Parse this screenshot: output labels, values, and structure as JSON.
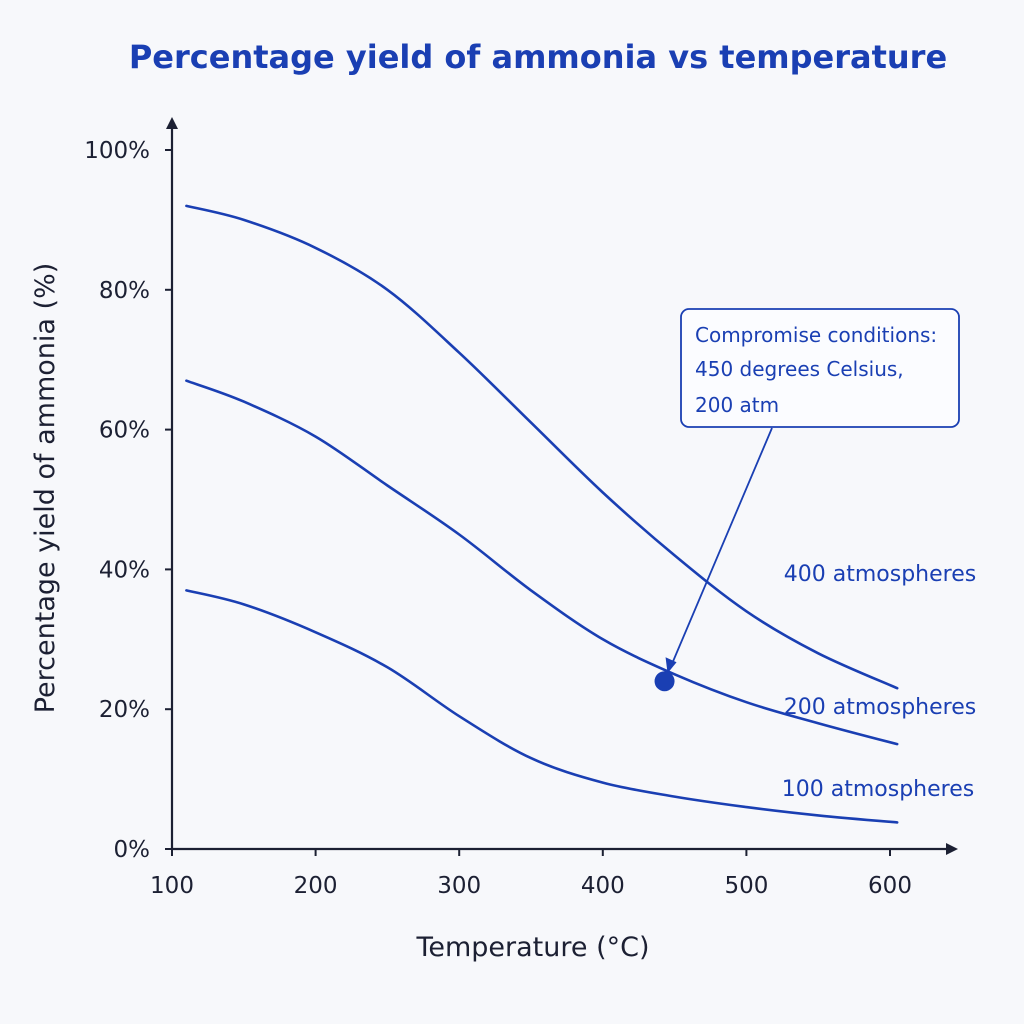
{
  "chart_data": {
    "type": "line",
    "title": "Percentage yield of ammonia vs temperature",
    "xlabel": "Temperature (°C)",
    "ylabel": "Percentage yield of ammonia (%)",
    "xlim": [
      100,
      600
    ],
    "ylim": [
      0,
      100
    ],
    "x_ticks": [
      "100",
      "200",
      "300",
      "400",
      "500",
      "600"
    ],
    "y_ticks": [
      "0%",
      "20%",
      "40%",
      "60%",
      "80%",
      "100%"
    ],
    "grid": false,
    "colors": {
      "accent": "#1a3fb3",
      "axis": "#1c2033",
      "background": "#f7f8fb"
    },
    "series": [
      {
        "name": "400 atmospheres",
        "x": [
          110,
          150,
          200,
          250,
          300,
          350,
          400,
          450,
          500,
          550,
          605
        ],
        "y": [
          92,
          90,
          86,
          80,
          71,
          61,
          51,
          42,
          34,
          28,
          23
        ]
      },
      {
        "name": "200 atmospheres",
        "x": [
          110,
          150,
          200,
          250,
          300,
          350,
          400,
          450,
          500,
          550,
          605
        ],
        "y": [
          67,
          64,
          59,
          52,
          45,
          37,
          30,
          25,
          21,
          18,
          15
        ]
      },
      {
        "name": "100 atmospheres",
        "x": [
          110,
          150,
          200,
          250,
          300,
          350,
          400,
          450,
          500,
          550,
          605
        ],
        "y": [
          37,
          35,
          31,
          26,
          19,
          13,
          9.5,
          7.5,
          6,
          4.8,
          3.8
        ]
      }
    ],
    "annotation": {
      "lines": [
        "Compromise conditions:",
        "450 degrees Celsius,",
        "200 atm"
      ],
      "point": {
        "x": 443,
        "y": 24,
        "series": "200 atmospheres"
      }
    }
  }
}
